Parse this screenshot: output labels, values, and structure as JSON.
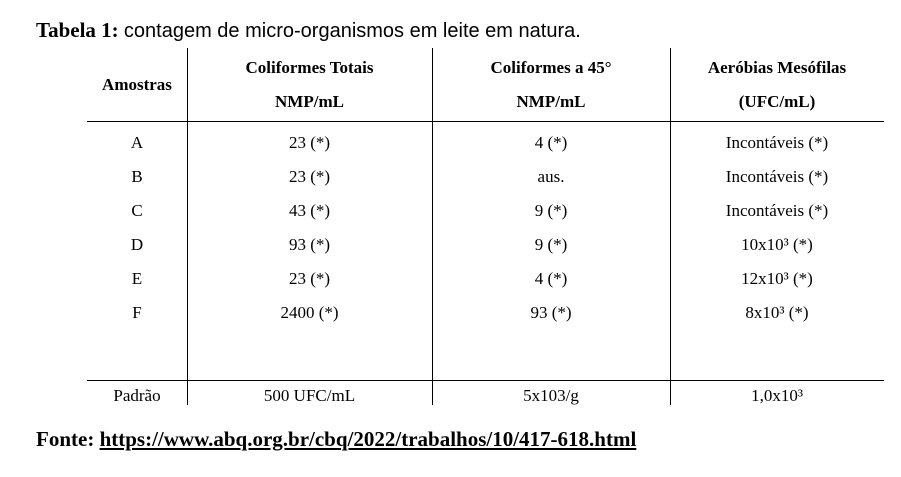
{
  "caption": {
    "label": "Tabela 1:",
    "text": "contagem de micro-organismos em leite em natura."
  },
  "table": {
    "headers": [
      {
        "line1": "Amostras",
        "line2": ""
      },
      {
        "line1": "Coliformes Totais",
        "line2": "NMP/mL"
      },
      {
        "line1": "Coliformes a 45°",
        "line2": "NMP/mL"
      },
      {
        "line1": "Aeróbias Mesófilas",
        "line2": "(UFC/mL)"
      }
    ],
    "rows": [
      [
        "A",
        "23 (*)",
        "4 (*)",
        "Incontáveis (*)"
      ],
      [
        "B",
        "23 (*)",
        "aus.",
        "Incontáveis (*)"
      ],
      [
        "C",
        "43 (*)",
        "9 (*)",
        "Incontáveis (*)"
      ],
      [
        "D",
        "93 (*)",
        "9 (*)",
        "10x10³ (*)"
      ],
      [
        "E",
        "23 (*)",
        "4 (*)",
        "12x10³ (*)"
      ],
      [
        "F",
        "2400 (*)",
        "93 (*)",
        "8x10³ (*)"
      ]
    ],
    "standard_row": [
      "Padrão",
      "500 UFC/mL",
      "5x103/g",
      "1,0x10³"
    ]
  },
  "source": {
    "label": "Fonte:",
    "url": "https://www.abq.org.br/cbq/2022/trabalhos/10/417-618.html"
  }
}
